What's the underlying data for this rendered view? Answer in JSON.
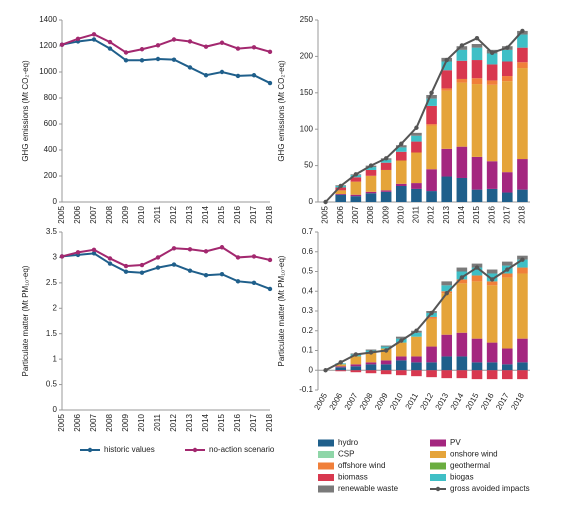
{
  "chart_data": [
    {
      "type": "line",
      "ylabel": "GHG emissions (Mt CO₂-eq)",
      "categories": [
        "2005",
        "2006",
        "2007",
        "2008",
        "2009",
        "2010",
        "2011",
        "2012",
        "2013",
        "2014",
        "2015",
        "2016",
        "2017",
        "2018"
      ],
      "ylim": [
        0,
        1400
      ],
      "yticks": [
        0,
        200,
        400,
        600,
        800,
        1000,
        1200,
        1400
      ],
      "series": [
        {
          "name": "historic values",
          "color": "#1f5f8b",
          "values": [
            1210,
            1235,
            1250,
            1180,
            1090,
            1090,
            1100,
            1095,
            1035,
            975,
            1000,
            970,
            975,
            915
          ]
        },
        {
          "name": "no-action scenario",
          "color": "#a3286f",
          "values": [
            1210,
            1255,
            1290,
            1230,
            1150,
            1175,
            1205,
            1250,
            1235,
            1195,
            1225,
            1180,
            1190,
            1155
          ]
        }
      ]
    },
    {
      "type": "line",
      "ylabel": "Particulate matter (Mt PM₁₀-eq)",
      "categories": [
        "2005",
        "2006",
        "2007",
        "2008",
        "2009",
        "2010",
        "2011",
        "2012",
        "2013",
        "2014",
        "2015",
        "2016",
        "2017",
        "2018"
      ],
      "ylim": [
        0,
        3.5
      ],
      "yticks": [
        0,
        0.5,
        1,
        1.5,
        2,
        2.5,
        3,
        3.5
      ],
      "series": [
        {
          "name": "historic values",
          "color": "#1f5f8b",
          "values": [
            3.02,
            3.05,
            3.08,
            2.88,
            2.72,
            2.7,
            2.8,
            2.86,
            2.74,
            2.65,
            2.67,
            2.53,
            2.5,
            2.38
          ]
        },
        {
          "name": "no-action scenario",
          "color": "#a3286f",
          "values": [
            3.02,
            3.1,
            3.15,
            2.98,
            2.83,
            2.85,
            3.0,
            3.18,
            3.16,
            3.12,
            3.2,
            3.0,
            3.02,
            2.95
          ]
        }
      ]
    },
    {
      "type": "stacked_bar",
      "ylabel": "GHG emissions (Mt CO₂-eq)",
      "categories": [
        "2005",
        "2006",
        "2007",
        "2008",
        "2009",
        "2010",
        "2011",
        "2012",
        "2013",
        "2014",
        "2015",
        "2016",
        "2017",
        "2018"
      ],
      "ylim": [
        0,
        250
      ],
      "yticks": [
        0,
        50,
        100,
        150,
        200,
        250
      ],
      "series": [
        {
          "name": "hydro",
          "type": "bar",
          "color": "#1f5f8b",
          "values": [
            0,
            10,
            8,
            12,
            14,
            22,
            18,
            15,
            35,
            33,
            17,
            18,
            13,
            17
          ]
        },
        {
          "name": "PV",
          "type": "bar",
          "color": "#a4267f",
          "values": [
            0,
            1,
            2,
            2,
            2,
            3,
            8,
            30,
            38,
            43,
            45,
            38,
            28,
            42
          ]
        },
        {
          "name": "CSP",
          "type": "bar",
          "color": "#8fd6a8",
          "values": [
            0,
            0,
            0,
            0,
            0,
            0,
            0,
            0,
            0,
            0,
            0,
            0,
            0,
            0
          ]
        },
        {
          "name": "onshore wind",
          "type": "bar",
          "color": "#e5a43a",
          "values": [
            0,
            5,
            18,
            22,
            28,
            32,
            42,
            60,
            80,
            88,
            100,
            105,
            125,
            125
          ]
        },
        {
          "name": "offshore wind",
          "type": "bar",
          "color": "#f07f3a",
          "values": [
            0,
            0,
            0,
            0,
            0,
            0,
            0,
            2,
            3,
            5,
            8,
            6,
            7,
            8
          ]
        },
        {
          "name": "geothermal",
          "type": "bar",
          "color": "#6aad3f",
          "values": [
            0,
            0,
            0,
            0,
            0,
            0,
            0,
            0,
            0,
            0,
            0,
            0,
            0,
            0
          ]
        },
        {
          "name": "biomass",
          "type": "bar",
          "color": "#d8384f",
          "values": [
            0,
            4,
            6,
            8,
            10,
            12,
            15,
            25,
            25,
            25,
            25,
            22,
            20,
            20
          ]
        },
        {
          "name": "biogas",
          "type": "bar",
          "color": "#3fbfc6",
          "values": [
            0,
            2,
            3,
            4,
            4,
            6,
            8,
            10,
            12,
            15,
            17,
            15,
            16,
            18
          ]
        },
        {
          "name": "renewable waste",
          "type": "bar",
          "color": "#7a7a7a",
          "values": [
            0,
            1,
            1,
            2,
            2,
            3,
            4,
            5,
            5,
            5,
            5,
            5,
            5,
            5
          ]
        },
        {
          "name": "gross avoided impacts",
          "type": "line",
          "color": "#555555",
          "values": [
            0,
            22,
            38,
            50,
            60,
            80,
            102,
            150,
            195,
            215,
            225,
            205,
            212,
            235
          ]
        }
      ]
    },
    {
      "type": "stacked_bar",
      "ylabel": "Particulate matter (Mt PM₁₀-eq)",
      "categories": [
        "2005",
        "2006",
        "2007",
        "2008",
        "2009",
        "2010",
        "2011",
        "2012",
        "2013",
        "2014",
        "2015",
        "2016",
        "2017",
        "2018"
      ],
      "ylim": [
        -0.1,
        0.7
      ],
      "yticks": [
        -0.1,
        0,
        0.1,
        0.2,
        0.3,
        0.4,
        0.5,
        0.6,
        0.7
      ],
      "series": [
        {
          "name": "hydro",
          "type": "bar",
          "color": "#1f5f8b",
          "values": [
            0,
            0.015,
            0.02,
            0.03,
            0.03,
            0.05,
            0.04,
            0.04,
            0.07,
            0.07,
            0.04,
            0.04,
            0.03,
            0.04
          ]
        },
        {
          "name": "PV",
          "type": "bar",
          "color": "#a4267f",
          "values": [
            0,
            0.005,
            0.01,
            0.01,
            0.02,
            0.02,
            0.03,
            0.08,
            0.11,
            0.12,
            0.12,
            0.1,
            0.08,
            0.12
          ]
        },
        {
          "name": "CSP",
          "type": "bar",
          "color": "#8fd6a8",
          "values": [
            0,
            0,
            0,
            0,
            0,
            0,
            0,
            0,
            0,
            0,
            0,
            0,
            0,
            0
          ]
        },
        {
          "name": "onshore wind",
          "type": "bar",
          "color": "#e5a43a",
          "values": [
            0,
            0.01,
            0.04,
            0.05,
            0.06,
            0.07,
            0.1,
            0.14,
            0.21,
            0.25,
            0.29,
            0.29,
            0.36,
            0.33
          ]
        },
        {
          "name": "offshore wind",
          "type": "bar",
          "color": "#f07f3a",
          "values": [
            0,
            0,
            0,
            0,
            0,
            0,
            0,
            0.01,
            0.01,
            0.02,
            0.03,
            0.02,
            0.02,
            0.03
          ]
        },
        {
          "name": "geothermal",
          "type": "bar",
          "color": "#6aad3f",
          "values": [
            0,
            0,
            0,
            0,
            0,
            0,
            0,
            0,
            0,
            0,
            0,
            0,
            0,
            0
          ]
        },
        {
          "name": "biomass",
          "type": "bar",
          "color": "#d8384f",
          "values": [
            0,
            -0.005,
            -0.01,
            -0.015,
            -0.02,
            -0.025,
            -0.03,
            -0.035,
            -0.04,
            -0.04,
            -0.045,
            -0.045,
            -0.045,
            -0.045
          ]
        },
        {
          "name": "biogas",
          "type": "bar",
          "color": "#3fbfc6",
          "values": [
            0,
            0.005,
            0.01,
            0.01,
            0.01,
            0.02,
            0.02,
            0.02,
            0.03,
            0.04,
            0.04,
            0.04,
            0.04,
            0.04
          ]
        },
        {
          "name": "renewable waste",
          "type": "bar",
          "color": "#7a7a7a",
          "values": [
            0,
            0,
            0.005,
            0.005,
            0.005,
            0.01,
            0.01,
            0.01,
            0.02,
            0.02,
            0.02,
            0.02,
            0.02,
            0.02
          ]
        },
        {
          "name": "gross avoided impacts",
          "type": "line",
          "color": "#555555",
          "values": [
            0,
            0.04,
            0.08,
            0.09,
            0.1,
            0.15,
            0.2,
            0.29,
            0.39,
            0.47,
            0.52,
            0.46,
            0.51,
            0.56
          ]
        }
      ]
    }
  ]
}
